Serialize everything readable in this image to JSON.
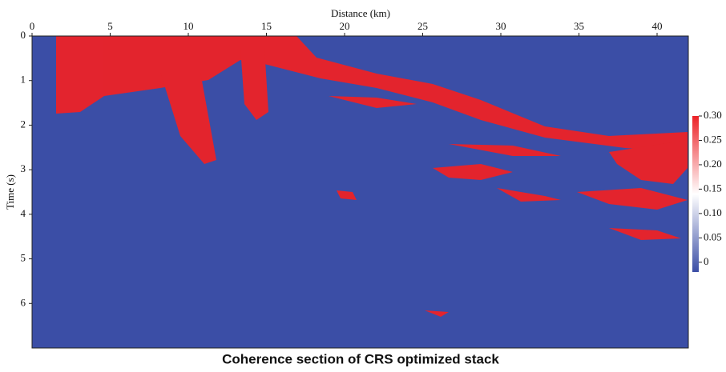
{
  "chart_data": {
    "type": "image",
    "title": "Coherence section of CRS optimized  stack",
    "x_label": "Distance (km)",
    "y_label": "Time (s)",
    "xlim": [
      0,
      42
    ],
    "xticks": [
      0,
      5,
      10,
      15,
      20,
      25,
      30,
      35,
      40
    ],
    "ylim": [
      0,
      7
    ],
    "yticks": [
      0,
      1,
      2,
      3,
      4,
      5,
      6
    ],
    "clim": [
      -0.02,
      0.3
    ],
    "cticks": [
      0,
      0.05,
      {
        "value": 0.1,
        "label": "0.10"
      },
      0.15,
      {
        "value": 0.2,
        "label": "0.20"
      },
      0.25,
      {
        "value": 0.3,
        "label": "0.30"
      }
    ],
    "colormap": [
      "#3b4ea6",
      "#ffffff",
      "#ec2227"
    ]
  }
}
